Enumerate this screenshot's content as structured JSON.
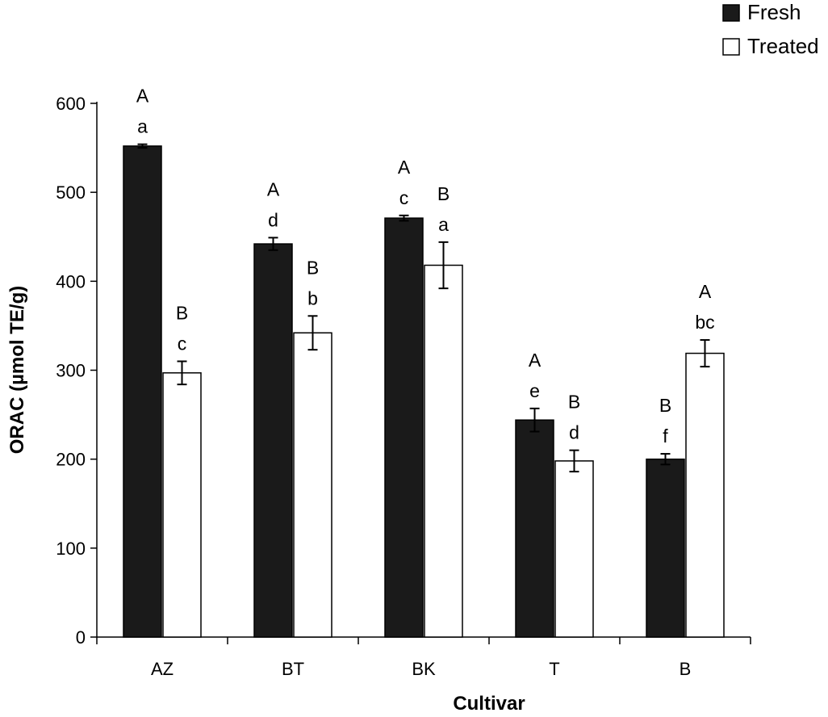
{
  "chart_data": {
    "type": "bar",
    "xlabel": "Cultivar",
    "ylabel": "ORAC (µmol TE/g)",
    "ylim": [
      0,
      600
    ],
    "yticks": [
      0,
      100,
      200,
      300,
      400,
      500,
      600
    ],
    "legend_position": "top-right",
    "categories": [
      "AZ",
      "BT",
      "BK",
      "T",
      "B"
    ],
    "series": [
      {
        "name": "Fresh",
        "color": "#1a1a1a",
        "values": [
          552,
          442,
          471,
          244,
          200
        ],
        "errors": [
          2,
          7,
          3,
          13,
          6
        ],
        "upper_letters": [
          "A",
          "A",
          "A",
          "A",
          "B"
        ],
        "lower_letters": [
          "a",
          "d",
          "c",
          "e",
          "f"
        ]
      },
      {
        "name": "Treated",
        "color": "#ffffff",
        "values": [
          297,
          342,
          418,
          198,
          319
        ],
        "errors": [
          13,
          19,
          26,
          12,
          15
        ],
        "upper_letters": [
          "B",
          "B",
          "B",
          "B",
          "A"
        ],
        "lower_letters": [
          "c",
          "b",
          "a",
          "d",
          "bc"
        ]
      }
    ]
  }
}
